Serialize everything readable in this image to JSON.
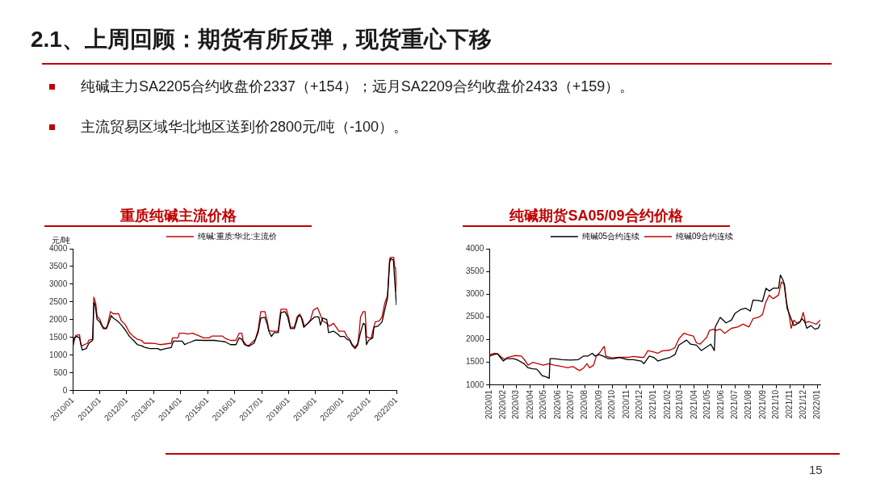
{
  "chart_data": [
    {
      "type": "other",
      "title": "2.1、上周回顾：期货有所反弹，现货重心下移",
      "annotations": [
        "纯碱主力SA2205合约收盘价2337（+154）；远月SA2209合约收盘价2433（+159）。",
        "主流贸易区域华北地区送到价2800元/吨（-100）。",
        "15"
      ]
    },
    {
      "type": "line",
      "title": "重质纯碱主流价格",
      "ylabel": "元/吨",
      "xlim": [
        "2010-01",
        "2022-01"
      ],
      "xticks": [
        {
          "value": "2010-01",
          "label": "2010/01"
        },
        {
          "value": "2011-01",
          "label": "2011/01"
        },
        {
          "value": "2012-01",
          "label": "2012/01"
        },
        {
          "value": "2013-01",
          "label": "2013/01"
        },
        {
          "value": "2014-01",
          "label": "2014/01"
        },
        {
          "value": "2015-01",
          "label": "2015/01"
        },
        {
          "value": "2016-01",
          "label": "2016/01"
        },
        {
          "value": "2017-01",
          "label": "2017/01"
        },
        {
          "value": "2018-01",
          "label": "2018/01"
        },
        {
          "value": "2019-01",
          "label": "2019/01"
        },
        {
          "value": "2020-01",
          "label": "2020/01"
        },
        {
          "value": "2021-01",
          "label": "2021/01"
        },
        {
          "value": "2022-01",
          "label": "2022/01"
        }
      ],
      "ylim": [
        0,
        4000
      ],
      "yticks": [
        0,
        500,
        1000,
        1500,
        2000,
        2500,
        3000,
        3500,
        4000
      ],
      "grid": false,
      "legend": "top",
      "series": [
        {
          "color": "#000000",
          "x": [
            "2010-01-01",
            "2010-01-19",
            "2010-02-25",
            "2010-04-01",
            "2010-05-07",
            "2010-07-01",
            "2010-08-07",
            "2010-09-24",
            "2010-10-12",
            "2010-10-30",
            "2010-11-25",
            "2011-01-01",
            "2011-02-18",
            "2011-04-01",
            "2011-05-07",
            "2011-06-05",
            "2011-07-01",
            "2011-08-25",
            "2011-10-19",
            "2011-12-13",
            "2012-02-07",
            "2012-04-01",
            "2012-05-25",
            "2012-07-19",
            "2012-08-25",
            "2012-11-07",
            "2013-02-25",
            "2013-04-01",
            "2013-06-13",
            "2013-08-25",
            "2013-09-24",
            "2014-01-19",
            "2014-02-25",
            "2014-04-01",
            "2014-05-25",
            "2014-07-19",
            "2014-11-07",
            "2015-04-01",
            "2015-06-13",
            "2015-08-25",
            "2015-11-07",
            "2016-01-19",
            "2016-03-02",
            "2016-04-08",
            "2016-05-14",
            "2016-07-08",
            "2016-09-20",
            "2016-11-14",
            "2016-12-20",
            "2017-02-14",
            "2017-03-20",
            "2017-04-08",
            "2017-05-14",
            "2017-06-20",
            "2017-08-14",
            "2017-09-20",
            "2017-11-14",
            "2017-12-20",
            "2018-01-26",
            "2018-03-20",
            "2018-05-14",
            "2018-06-20",
            "2018-07-26",
            "2018-09-20",
            "2018-11-14",
            "2018-12-20",
            "2019-02-14",
            "2019-03-09",
            "2019-04-08",
            "2019-06-02",
            "2019-06-27",
            "2019-09-02",
            "2019-10-26",
            "2019-12-02",
            "2020-01-26",
            "2020-03-02",
            "2020-04-08",
            "2020-05-14",
            "2020-06-20",
            "2020-07-26",
            "2020-09-02",
            "2020-10-08",
            "2020-11-03",
            "2020-11-21",
            "2020-12-20",
            "2021-02-14",
            "2021-03-02",
            "2021-04-26",
            "2021-06-20",
            "2021-07-26",
            "2021-09-02",
            "2021-10-01",
            "2021-10-19",
            "2021-11-21",
            "2021-12-09",
            "2022-01-01"
          ],
          "values": [
            1230,
            1490,
            1530,
            1490,
            1150,
            1190,
            1340,
            1420,
            2490,
            2420,
            2010,
            1940,
            1750,
            1750,
            1940,
            2120,
            2050,
            1970,
            1860,
            1710,
            1530,
            1420,
            1300,
            1270,
            1230,
            1190,
            1190,
            1150,
            1190,
            1220,
            1400,
            1400,
            1300,
            1340,
            1380,
            1430,
            1420,
            1420,
            1400,
            1380,
            1300,
            1300,
            1490,
            1450,
            1300,
            1250,
            1340,
            1640,
            2050,
            2070,
            1860,
            1680,
            1530,
            1640,
            1640,
            2200,
            2230,
            2080,
            1750,
            1750,
            2120,
            2080,
            1790,
            1900,
            2010,
            2080,
            2080,
            1850,
            2050,
            2010,
            1640,
            1680,
            1600,
            1530,
            1530,
            1450,
            1420,
            1270,
            1190,
            1300,
            1640,
            1900,
            1860,
            1300,
            1420,
            1490,
            1790,
            1820,
            1940,
            2270,
            2610,
            3610,
            3720,
            3680,
            3090,
            2420
          ]
        },
        {
          "name": "纯碱:重质:华北:主流价",
          "color": "#c00000",
          "x": [
            "2010-01-01",
            "2010-02-07",
            "2010-04-01",
            "2010-04-19",
            "2010-05-07",
            "2010-07-19",
            "2010-08-07",
            "2010-10-01",
            "2010-10-12",
            "2010-11-07",
            "2010-11-25",
            "2011-01-01",
            "2011-02-07",
            "2011-03-13",
            "2011-04-12",
            "2011-05-25",
            "2011-07-01",
            "2011-09-13",
            "2011-10-19",
            "2011-12-13",
            "2012-02-07",
            "2012-04-01",
            "2012-05-25",
            "2012-07-19",
            "2012-08-25",
            "2012-11-07",
            "2013-01-19",
            "2013-04-01",
            "2013-08-25",
            "2013-09-13",
            "2013-11-25",
            "2013-12-13",
            "2014-02-25",
            "2014-04-01",
            "2014-06-13",
            "2014-08-25",
            "2014-11-07",
            "2015-01-19",
            "2015-02-25",
            "2015-07-19",
            "2015-08-25",
            "2015-11-07",
            "2016-01-19",
            "2016-03-02",
            "2016-04-08",
            "2016-04-26",
            "2016-06-02",
            "2016-07-08",
            "2016-09-02",
            "2016-10-08",
            "2016-11-14",
            "2016-12-20",
            "2017-02-14",
            "2017-03-20",
            "2017-04-08",
            "2017-05-14",
            "2017-08-14",
            "2017-09-02",
            "2017-09-20",
            "2017-12-02",
            "2018-01-08",
            "2018-01-26",
            "2018-03-20",
            "2018-04-26",
            "2018-06-02",
            "2018-07-08",
            "2018-08-03",
            "2018-09-20",
            "2018-10-26",
            "2018-12-02",
            "2019-01-26",
            "2019-02-25",
            "2019-04-08",
            "2019-06-02",
            "2019-07-08",
            "2019-09-02",
            "2019-10-08",
            "2019-11-14",
            "2020-01-26",
            "2020-03-02",
            "2020-04-08",
            "2020-05-14",
            "2020-06-20",
            "2020-07-26",
            "2020-08-14",
            "2020-09-02",
            "2020-10-08",
            "2020-11-03",
            "2020-11-21",
            "2020-12-20",
            "2021-01-26",
            "2021-02-14",
            "2021-03-20",
            "2021-05-14",
            "2021-06-20",
            "2021-07-26",
            "2021-09-02",
            "2021-10-01",
            "2021-10-19",
            "2021-11-25",
            "2021-12-09",
            "2021-12-20",
            "2022-01-01"
          ],
          "values": [
            1270,
            1560,
            1580,
            1300,
            1270,
            1340,
            1430,
            1450,
            2640,
            2460,
            2100,
            2010,
            1820,
            1750,
            1820,
            2230,
            2170,
            2170,
            1970,
            1860,
            1640,
            1530,
            1450,
            1420,
            1340,
            1340,
            1330,
            1300,
            1340,
            1490,
            1490,
            1620,
            1620,
            1600,
            1620,
            1560,
            1490,
            1490,
            1540,
            1540,
            1480,
            1420,
            1420,
            1620,
            1620,
            1410,
            1300,
            1270,
            1380,
            1450,
            1710,
            2230,
            2230,
            1940,
            1710,
            1680,
            1680,
            2050,
            2300,
            2300,
            2010,
            1790,
            1790,
            2080,
            2160,
            2010,
            1820,
            1900,
            2010,
            2270,
            2340,
            2200,
            1970,
            1900,
            1820,
            1900,
            1790,
            1680,
            1680,
            1530,
            1450,
            1300,
            1230,
            1340,
            1640,
            2080,
            2230,
            2230,
            1530,
            1490,
            1490,
            1680,
            1940,
            1970,
            2080,
            2460,
            2680,
            3720,
            3760,
            3760,
            3460,
            3460,
            2800
          ]
        }
      ]
    },
    {
      "type": "line",
      "title": "纯碱期货SA05/09合约价格",
      "xlim": [
        "2020-01-01",
        "2022-01-07"
      ],
      "xticks": [
        {
          "value": "2020-01",
          "label": "2020/01"
        },
        {
          "value": "2020-02",
          "label": "2020/02"
        },
        {
          "value": "2020-03",
          "label": "2020/03"
        },
        {
          "value": "2020-04",
          "label": "2020/04"
        },
        {
          "value": "2020-05",
          "label": "2020/05"
        },
        {
          "value": "2020-06",
          "label": "2020/06"
        },
        {
          "value": "2020-07",
          "label": "2020/07"
        },
        {
          "value": "2020-08",
          "label": "2020/08"
        },
        {
          "value": "2020-09",
          "label": "2020/09"
        },
        {
          "value": "2020-10",
          "label": "2020/10"
        },
        {
          "value": "2020-11",
          "label": "2020/11"
        },
        {
          "value": "2020-12",
          "label": "2020/12"
        },
        {
          "value": "2021-01",
          "label": "2021/01"
        },
        {
          "value": "2021-02",
          "label": "2021/02"
        },
        {
          "value": "2021-03",
          "label": "2021/03"
        },
        {
          "value": "2021-04",
          "label": "2021/04"
        },
        {
          "value": "2021-05",
          "label": "2021/05"
        },
        {
          "value": "2021-06",
          "label": "2021/06"
        },
        {
          "value": "2021-07",
          "label": "2021/07"
        },
        {
          "value": "2021-08",
          "label": "2021/08"
        },
        {
          "value": "2021-09",
          "label": "2021/09"
        },
        {
          "value": "2021-10",
          "label": "2021/10"
        },
        {
          "value": "2021-11",
          "label": "2021/11"
        },
        {
          "value": "2021-12",
          "label": "2021/12"
        },
        {
          "value": "2022-01",
          "label": "2022/01"
        }
      ],
      "ylim": [
        1000,
        4000
      ],
      "yticks": [
        1000,
        1500,
        2000,
        2500,
        3000,
        3500,
        4000
      ],
      "grid": false,
      "legend": "top",
      "series": [
        {
          "name": "纯碱05合约连续",
          "color": "#000000",
          "x": [
            "2020-01-01",
            "2020-01-10",
            "2020-01-19",
            "2020-01-25",
            "2020-02-01",
            "2020-02-07",
            "2020-02-24",
            "2020-03-06",
            "2020-03-18",
            "2020-03-27",
            "2020-04-06",
            "2020-04-15",
            "2020-04-21",
            "2020-04-27",
            "2020-05-06",
            "2020-05-13",
            "2020-05-15",
            "2020-05-24",
            "2020-06-11",
            "2020-06-29",
            "2020-07-17",
            "2020-07-29",
            "2020-08-08",
            "2020-08-17",
            "2020-08-23",
            "2020-09-01",
            "2020-09-10",
            "2020-09-22",
            "2020-10-04",
            "2020-10-16",
            "2020-11-04",
            "2020-11-16",
            "2020-12-04",
            "2020-12-10",
            "2020-12-22",
            "2021-01-01",
            "2021-01-10",
            "2021-01-19",
            "2021-02-06",
            "2021-02-17",
            "2021-02-26",
            "2021-03-06",
            "2021-03-15",
            "2021-03-24",
            "2021-04-06",
            "2021-04-17",
            "2021-04-26",
            "2021-05-08",
            "2021-05-16",
            "2021-05-18",
            "2021-05-29",
            "2021-06-11",
            "2021-06-23",
            "2021-07-01",
            "2021-07-13",
            "2021-07-25",
            "2021-08-04",
            "2021-08-10",
            "2021-08-22",
            "2021-08-31",
            "2021-09-08",
            "2021-09-15",
            "2021-09-24",
            "2021-10-06",
            "2021-10-10",
            "2021-10-15",
            "2021-10-19",
            "2021-10-25",
            "2021-11-03",
            "2021-11-09",
            "2021-11-15",
            "2021-11-21",
            "2021-11-27",
            "2021-12-03",
            "2021-12-08",
            "2021-12-17",
            "2021-12-26",
            "2022-01-02",
            "2022-01-07"
          ],
          "values": [
            1640,
            1670,
            1690,
            1610,
            1530,
            1580,
            1580,
            1540,
            1470,
            1380,
            1360,
            1350,
            1290,
            1210,
            1180,
            1150,
            1580,
            1580,
            1560,
            1550,
            1560,
            1640,
            1640,
            1700,
            1640,
            1670,
            1640,
            1580,
            1580,
            1610,
            1560,
            1560,
            1530,
            1470,
            1640,
            1610,
            1530,
            1560,
            1610,
            1670,
            1880,
            1930,
            1990,
            1900,
            1880,
            1760,
            1820,
            1900,
            1760,
            2280,
            2490,
            2370,
            2430,
            2580,
            2660,
            2690,
            2630,
            2870,
            2860,
            2840,
            3130,
            3070,
            3130,
            3130,
            3420,
            3330,
            3220,
            2690,
            2460,
            2310,
            2340,
            2370,
            2460,
            2400,
            2250,
            2310,
            2230,
            2250,
            2340
          ]
        },
        {
          "name": "纯碱09合约连续",
          "color": "#c00000",
          "x": [
            "2020-01-01",
            "2020-01-13",
            "2020-01-19",
            "2020-01-28",
            "2020-02-04",
            "2020-02-10",
            "2020-02-27",
            "2020-03-12",
            "2020-03-21",
            "2020-03-27",
            "2020-04-06",
            "2020-04-18",
            "2020-04-30",
            "2020-05-12",
            "2020-05-24",
            "2020-06-11",
            "2020-06-23",
            "2020-07-05",
            "2020-07-14",
            "2020-07-20",
            "2020-07-29",
            "2020-08-05",
            "2020-08-11",
            "2020-08-20",
            "2020-08-26",
            "2020-09-04",
            "2020-09-10",
            "2020-09-13",
            "2020-09-16",
            "2020-09-28",
            "2020-10-16",
            "2020-11-04",
            "2020-11-16",
            "2020-12-04",
            "2020-12-10",
            "2020-12-19",
            "2021-01-01",
            "2021-01-10",
            "2021-01-19",
            "2021-02-06",
            "2021-02-17",
            "2021-02-26",
            "2021-03-09",
            "2021-03-18",
            "2021-03-30",
            "2021-04-06",
            "2021-04-14",
            "2021-04-23",
            "2021-04-29",
            "2021-05-05",
            "2021-05-14",
            "2021-05-18",
            "2021-05-29",
            "2021-06-08",
            "2021-06-23",
            "2021-07-07",
            "2021-07-19",
            "2021-08-01",
            "2021-08-10",
            "2021-08-22",
            "2021-08-31",
            "2021-09-07",
            "2021-09-15",
            "2021-09-24",
            "2021-10-06",
            "2021-10-12",
            "2021-10-18",
            "2021-10-24",
            "2021-10-30",
            "2021-11-03",
            "2021-11-09",
            "2021-11-15",
            "2021-11-24",
            "2021-11-30",
            "2021-12-05",
            "2021-12-11",
            "2021-12-20",
            "2021-12-29",
            "2022-01-07"
          ],
          "values": [
            1670,
            1700,
            1690,
            1610,
            1560,
            1610,
            1650,
            1640,
            1530,
            1440,
            1500,
            1470,
            1440,
            1470,
            1440,
            1410,
            1380,
            1410,
            1350,
            1320,
            1380,
            1470,
            1380,
            1440,
            1640,
            1730,
            1820,
            1850,
            1640,
            1600,
            1610,
            1610,
            1630,
            1610,
            1610,
            1760,
            1730,
            1700,
            1750,
            1770,
            1820,
            2020,
            2140,
            2110,
            2080,
            1930,
            1900,
            1990,
            2050,
            2200,
            2230,
            2200,
            2230,
            2140,
            2250,
            2280,
            2340,
            2280,
            2460,
            2490,
            2550,
            2810,
            2980,
            2900,
            2980,
            3270,
            3220,
            2810,
            2520,
            2250,
            2430,
            2370,
            2400,
            2600,
            2370,
            2400,
            2370,
            2340,
            2430
          ]
        }
      ]
    }
  ]
}
